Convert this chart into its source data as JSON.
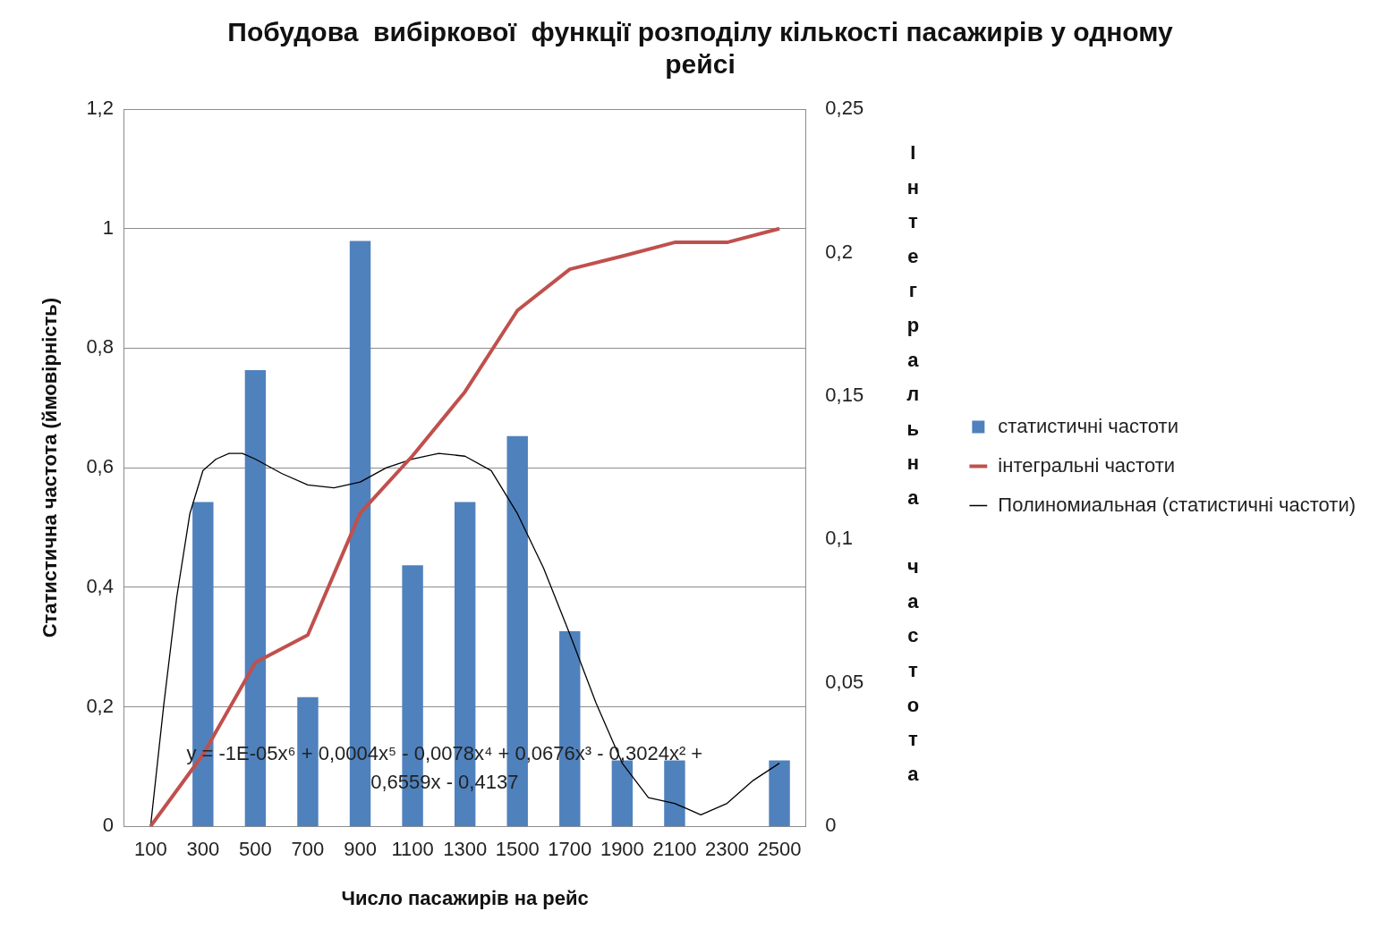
{
  "chart_data": {
    "type": "bar",
    "title": "Побудова  вибіркової  функції розподілу кількості пасажирів у одному рейсі",
    "xlabel": "Число пасажирів на рейс",
    "ylabel": "Статистична частота (ймовірність)",
    "y2label": "Інтегральна частота",
    "x": [
      100,
      300,
      500,
      700,
      900,
      1100,
      1300,
      1500,
      1700,
      1900,
      2100,
      2300,
      2500
    ],
    "xlim": [
      0,
      2600
    ],
    "xticks": [
      100,
      300,
      500,
      700,
      900,
      1100,
      1300,
      1500,
      1700,
      1900,
      2100,
      2300,
      2500
    ],
    "ylim": [
      0,
      1.2
    ],
    "yticks": [
      0,
      {
        "value": 0.2,
        "label": "0,2"
      },
      {
        "value": 0.4,
        "label": "0,4"
      },
      {
        "value": 0.6,
        "label": "0,6"
      },
      {
        "value": 0.8,
        "label": "0,8"
      },
      1,
      {
        "value": 1.2,
        "label": "1,2"
      }
    ],
    "y2lim": [
      0,
      0.25
    ],
    "y2ticks": [
      0,
      {
        "value": 0.05,
        "label": "0,05"
      },
      {
        "value": 0.1,
        "label": "0,1"
      },
      {
        "value": 0.15,
        "label": "0,15"
      },
      {
        "value": 0.2,
        "label": "0,2"
      },
      {
        "value": 0.25,
        "label": "0,25"
      }
    ],
    "series": [
      {
        "name": "статистичні частоти",
        "axis": "y2",
        "color": "#4f81bd",
        "values": [
          0,
          0.113,
          0.159,
          0.045,
          0.204,
          0.091,
          0.113,
          0.136,
          0.068,
          0.023,
          0.023,
          0,
          0.023
        ]
      },
      {
        "name": "інтегральні частоти",
        "type": "line",
        "color": "#c0504d",
        "values": [
          0,
          0.12,
          0.274,
          0.32,
          0.524,
          0.62,
          0.727,
          0.863,
          0.932,
          0.954,
          0.977,
          0.977,
          1
        ]
      },
      {
        "name": "Полиномиальная (статистичні частоти)",
        "type": "line",
        "axis": "y2",
        "color": "#000000",
        "x": [
          100,
          150,
          200,
          250,
          300,
          350,
          400,
          450,
          500,
          600,
          700,
          800,
          900,
          1000,
          1100,
          1200,
          1300,
          1400,
          1500,
          1600,
          1700,
          1800,
          1900,
          2000,
          2100,
          2200,
          2300,
          2400,
          2500
        ],
        "values": [
          0,
          0.042,
          0.08,
          0.109,
          0.124,
          0.128,
          0.13,
          0.13,
          0.128,
          0.123,
          0.119,
          0.118,
          0.12,
          0.125,
          0.128,
          0.13,
          0.129,
          0.124,
          0.109,
          0.09,
          0.067,
          0.043,
          0.022,
          0.01,
          0.008,
          0.004,
          0.008,
          0.016,
          0.022
        ]
      }
    ],
    "annotations": [
      "y = -1E-05x⁶ + 0,0004x⁵ - 0,0078x⁴ + 0,0676x³ - 0,3024x² + 0,6559x - 0,4137"
    ],
    "grid": "y",
    "legend": "right",
    "marker": "none"
  }
}
